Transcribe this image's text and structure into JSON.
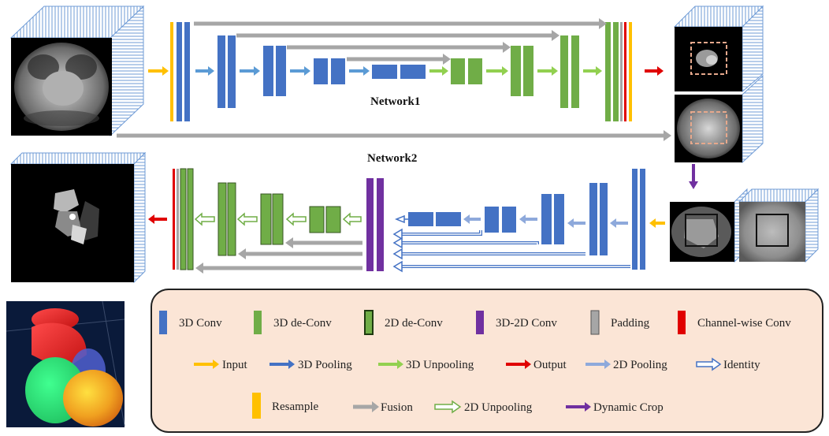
{
  "labels": {
    "network1": "Network1",
    "network2": "Network2"
  },
  "legend": {
    "blocks": [
      {
        "name": "3d-conv",
        "label": "3D Conv",
        "color": "#4472C4"
      },
      {
        "name": "3d-deconv",
        "label": "3D de-Conv",
        "color": "#70AD47"
      },
      {
        "name": "2d-deconv",
        "label": "2D de-Conv",
        "color": "#70AD47"
      },
      {
        "name": "3d-2d-conv",
        "label": "3D-2D Conv",
        "color": "#7030A0"
      },
      {
        "name": "padding",
        "label": "Padding",
        "color": "#A6A6A6"
      },
      {
        "name": "channel-wise-conv",
        "label": "Channel-wise Conv",
        "color": "#E00000"
      }
    ],
    "arrows": [
      {
        "name": "input",
        "label": "Input",
        "color": "#FFC000"
      },
      {
        "name": "3d-pooling",
        "label": "3D Pooling",
        "color": "#4472C4"
      },
      {
        "name": "3d-unpooling",
        "label": "3D Unpooling",
        "color": "#92D050"
      },
      {
        "name": "output",
        "label": "Output",
        "color": "#E00000"
      },
      {
        "name": "2d-pooling",
        "label": "2D Pooling",
        "color": "#8EA9DB"
      },
      {
        "name": "identity",
        "label": "Identity",
        "color": "#4472C4"
      }
    ],
    "row3": [
      {
        "name": "resample",
        "label": "Resample",
        "color": "#FFC000"
      },
      {
        "name": "fusion",
        "label": "Fusion",
        "color": "#A6A6A6"
      },
      {
        "name": "2d-unpooling",
        "label": "2D Unpooling",
        "color": "#70AD47"
      },
      {
        "name": "dynamic-crop",
        "label": "Dynamic Crop",
        "color": "#7030A0"
      }
    ]
  },
  "colors": {
    "conv3d": "#4472C4",
    "deconv3d": "#70AD47",
    "deconv2d_border": "#375623",
    "purple": "#7030A0",
    "gray": "#A6A6A6",
    "red": "#E00000",
    "yellow": "#FFC000",
    "lightblue": "#8EA9DB",
    "lightgreen": "#92D050",
    "legend_bg": "#FBE5D6"
  }
}
